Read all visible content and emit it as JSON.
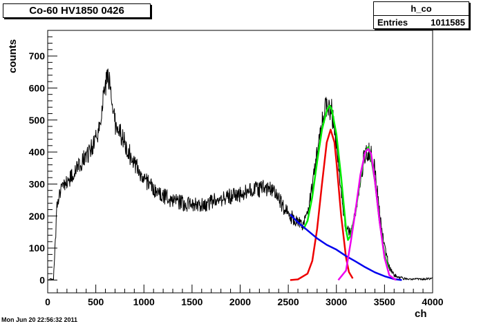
{
  "title": "Co-60 HV1850 0426",
  "stats": {
    "name": "h_co",
    "entries_label": "Entries",
    "entries_value": "1011585"
  },
  "footer": "Mon Jun 20 22:56:32 2011",
  "chart_data": {
    "type": "line",
    "xlabel": "ch",
    "ylabel": "counts",
    "xlim": [
      0,
      4000
    ],
    "ylim": [
      -40,
      780
    ],
    "x_ticks": [
      0,
      500,
      1000,
      1500,
      2000,
      2500,
      3000,
      3500,
      4000
    ],
    "y_ticks": [
      0,
      100,
      200,
      300,
      400,
      500,
      600,
      700
    ],
    "grid": false,
    "series": [
      {
        "color": "#000000",
        "x": [
          0,
          60,
          80,
          100,
          150,
          250,
          350,
          450,
          520,
          560,
          600,
          630,
          660,
          700,
          800,
          900,
          1000,
          1100,
          1200,
          1300,
          1400,
          1500,
          1600,
          1700,
          1800,
          1900,
          2000,
          2100,
          2200,
          2300,
          2350,
          2400,
          2450,
          2500,
          2550,
          2600,
          2650,
          2700,
          2750,
          2800,
          2850,
          2900,
          2950,
          3000,
          3050,
          3100,
          3150,
          3200,
          3250,
          3300,
          3350,
          3400,
          3450,
          3500,
          3550,
          3600,
          3700,
          3800,
          3900,
          4000
        ],
        "values": [
          0,
          5,
          120,
          250,
          290,
          320,
          365,
          410,
          460,
          520,
          610,
          640,
          570,
          490,
          430,
          360,
          320,
          285,
          262,
          250,
          240,
          232,
          235,
          243,
          255,
          262,
          270,
          278,
          285,
          288,
          278,
          255,
          228,
          205,
          192,
          182,
          175,
          200,
          290,
          400,
          490,
          550,
          530,
          430,
          280,
          160,
          150,
          220,
          320,
          400,
          405,
          340,
          210,
          100,
          40,
          15,
          5,
          3,
          3,
          5
        ]
      },
      {
        "color": "#00ee00",
        "x": [
          2660,
          2700,
          2750,
          2800,
          2850,
          2900,
          2930,
          2950,
          3000,
          3050,
          3100,
          3120,
          3150,
          3200,
          3250,
          3300,
          3330,
          3350,
          3400,
          3450,
          3500,
          3540
        ],
        "values": [
          160,
          185,
          260,
          370,
          470,
          530,
          545,
          535,
          455,
          320,
          160,
          125,
          140,
          215,
          320,
          400,
          415,
          400,
          310,
          180,
          80,
          35
        ]
      },
      {
        "color": "#ee0000",
        "x": [
          2520,
          2600,
          2700,
          2750,
          2800,
          2850,
          2900,
          2940,
          2980,
          3000,
          3050,
          3100,
          3130,
          3170
        ],
        "values": [
          0,
          2,
          20,
          60,
          160,
          300,
          430,
          470,
          430,
          370,
          200,
          70,
          25,
          5
        ]
      },
      {
        "color": "#0000ee",
        "x": [
          2520,
          2600,
          2700,
          2800,
          2900,
          3000,
          3100,
          3200,
          3300,
          3400,
          3500,
          3600,
          3680
        ],
        "values": [
          205,
          180,
          155,
          130,
          110,
          95,
          75,
          58,
          40,
          24,
          12,
          3,
          0
        ]
      },
      {
        "color": "#ee00ee",
        "x": [
          3020,
          3100,
          3150,
          3200,
          3250,
          3300,
          3330,
          3360,
          3400,
          3450,
          3500,
          3550,
          3620
        ],
        "values": [
          0,
          30,
          120,
          220,
          330,
          400,
          410,
          395,
          310,
          180,
          70,
          15,
          0
        ]
      }
    ]
  }
}
